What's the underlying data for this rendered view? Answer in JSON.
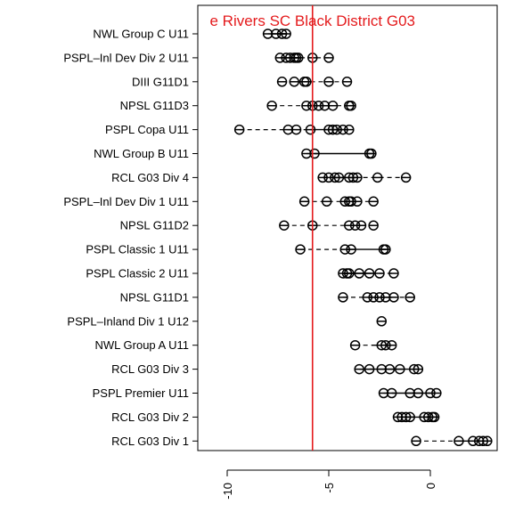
{
  "chart_data": {
    "type": "scatter",
    "title": "",
    "xlabel": "",
    "ylabel": "",
    "xlim": [
      -11,
      3.5
    ],
    "x_ticks": [
      "-10",
      "-5",
      "0"
    ],
    "x_tick_values": [
      -10,
      -5,
      0
    ],
    "reference_line": {
      "value": -5.8,
      "label": "e Rivers SC Black District G03",
      "color": "#e41a1c"
    },
    "point_color": "#000000",
    "categories": [
      {
        "name": "NWL Group C U11",
        "points": [
          -8.0,
          -7.6,
          -7.3,
          -7.1
        ],
        "box": [
          -7.8,
          -7.1
        ]
      },
      {
        "name": "PSPL–Inl Dev Div 2 U11",
        "points": [
          -7.4,
          -7.1,
          -6.9,
          -6.7,
          -6.6,
          -6.5,
          -5.8,
          -5.0
        ],
        "box": [
          -7.0,
          -6.4
        ]
      },
      {
        "name": "DIII G11D1",
        "points": [
          -7.3,
          -6.7,
          -6.2,
          -6.1,
          -5.0,
          -4.1
        ],
        "box": [
          -6.5,
          -5.9
        ]
      },
      {
        "name": "NPSL G11D3",
        "points": [
          -7.8,
          -6.1,
          -5.8,
          -5.5,
          -5.2,
          -4.8,
          -4.0,
          -3.9
        ],
        "box": [
          -6.0,
          -5.0
        ]
      },
      {
        "name": "PSPL Copa U11",
        "points": [
          -9.4,
          -7.0,
          -6.6,
          -5.9,
          -5.0,
          -4.8,
          -4.6,
          -4.3,
          -4.0
        ],
        "box": [
          -5.9,
          -4.2
        ]
      },
      {
        "name": "NWL Group B U11",
        "points": [
          -6.1,
          -5.7,
          -3.0,
          -2.9
        ],
        "box": [
          -5.7,
          -3.0
        ]
      },
      {
        "name": "RCL G03 Div 4",
        "points": [
          -5.3,
          -5.0,
          -4.7,
          -4.5,
          -4.0,
          -3.8,
          -3.6,
          -2.6,
          -1.2
        ],
        "box": [
          -4.7,
          -3.7
        ]
      },
      {
        "name": "PSPL–Inl Dev Div 1 U11",
        "points": [
          -6.2,
          -5.1,
          -4.2,
          -4.0,
          -3.9,
          -3.6,
          -2.8
        ],
        "box": [
          -4.3,
          -3.6
        ]
      },
      {
        "name": "NPSL G11D2",
        "points": [
          -7.2,
          -5.8,
          -4.0,
          -3.7,
          -3.4,
          -2.8
        ],
        "box": [
          -4.0,
          -3.4
        ]
      },
      {
        "name": "PSPL Classic 1 U11",
        "points": [
          -6.4,
          -4.2,
          -3.9,
          -2.3,
          -2.2
        ],
        "box": [
          -4.0,
          -2.2
        ]
      },
      {
        "name": "PSPL Classic 2 U11",
        "points": [
          -4.3,
          -4.1,
          -4.0,
          -3.5,
          -3.0,
          -2.5,
          -1.8
        ],
        "box": [
          -4.1,
          -2.9
        ]
      },
      {
        "name": "NPSL G11D1",
        "points": [
          -4.3,
          -3.1,
          -2.8,
          -2.5,
          -2.2,
          -1.8,
          -1.0
        ],
        "box": [
          -2.9,
          -1.9
        ]
      },
      {
        "name": "PSPL–Inland Div 1 U12",
        "points": [
          -2.4
        ],
        "box": [
          -2.4,
          -2.4
        ]
      },
      {
        "name": "NWL Group A U11",
        "points": [
          -3.7,
          -2.4,
          -2.2,
          -1.9
        ],
        "box": [
          -2.9,
          -2.1
        ]
      },
      {
        "name": "RCL G03 Div 3",
        "points": [
          -3.5,
          -3.0,
          -2.4,
          -2.0,
          -1.5,
          -0.8,
          -0.6
        ],
        "box": [
          -3.0,
          -1.0
        ]
      },
      {
        "name": "PSPL Premier U11",
        "points": [
          -2.3,
          -1.9,
          -1.0,
          -0.6,
          0.0,
          0.3
        ],
        "box": [
          -1.9,
          0.0
        ]
      },
      {
        "name": "RCL G03 Div 2",
        "points": [
          -1.6,
          -1.4,
          -1.2,
          -1.0,
          -0.3,
          -0.1,
          0.1,
          0.2
        ],
        "box": [
          -1.2,
          0.0
        ]
      },
      {
        "name": "RCL G03 Div 1",
        "points": [
          -0.7,
          1.4,
          2.1,
          2.4,
          2.6,
          2.8
        ],
        "box": [
          1.4,
          2.7
        ]
      }
    ]
  }
}
